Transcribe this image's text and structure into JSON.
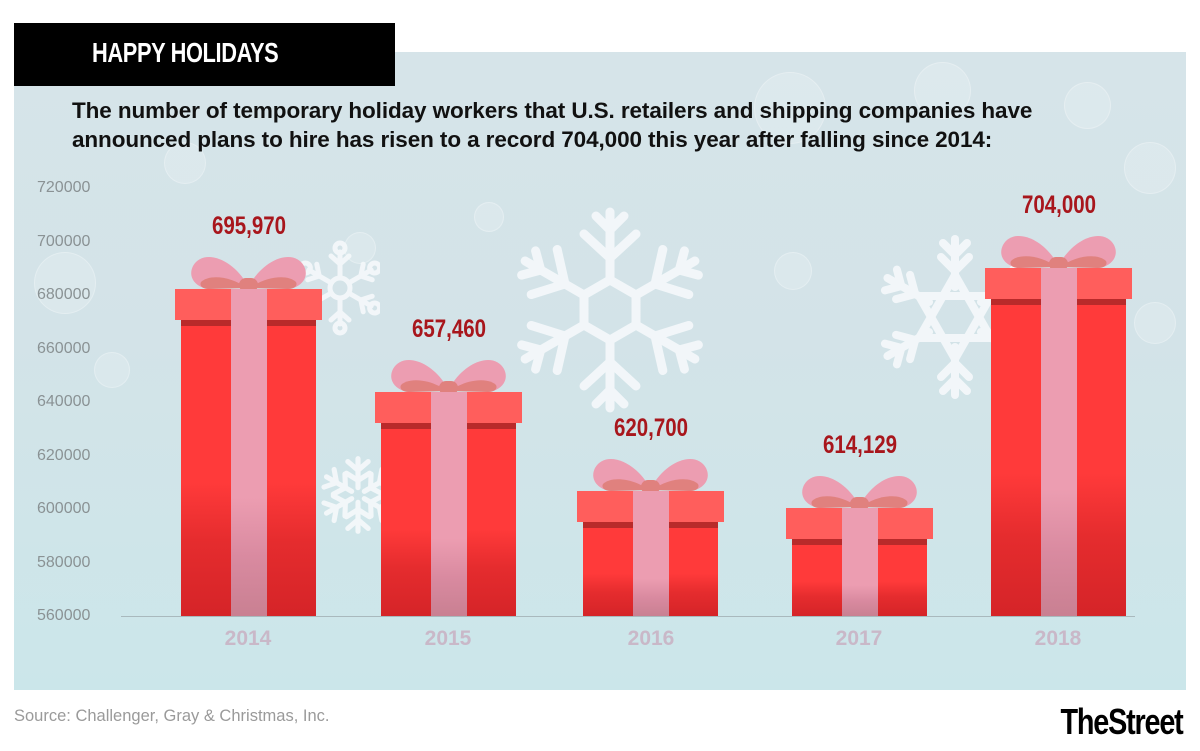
{
  "header": {
    "title": "HAPPY HOLIDAYS",
    "subtitle_line1": "The number of temporary holiday workers that U.S. retailers and shipping companies have",
    "subtitle_line2": "announced plans to hire has risen to a record 704,000 this year after falling since 2014:"
  },
  "footer": {
    "source": "Source: Challenger, Gray & Christmas, Inc.",
    "logo": "TheStreet"
  },
  "colors": {
    "title_bg": "#000000",
    "gift_lid": "#ff5e5c",
    "gift_body": "#ff3a3a",
    "gift_band": "#b92a2a",
    "ribbon": "#ec9db1",
    "bow_inner": "#e0817e",
    "value_label": "#a8161c",
    "x_label": "#c9b8c8",
    "y_label": "#8a9294",
    "panel_bg": "#d3e3e8"
  },
  "chart_data": {
    "type": "bar",
    "title": "HAPPY HOLIDAYS",
    "subtitle": "The number of temporary holiday workers that U.S. retailers and shipping companies have announced plans to hire has risen to a record 704,000 this year after falling since 2014:",
    "xlabel": "",
    "ylabel": "",
    "categories": [
      "2014",
      "2015",
      "2016",
      "2017",
      "2018"
    ],
    "values": [
      695970,
      657460,
      620700,
      614129,
      704000
    ],
    "value_labels": [
      "695,970",
      "657,460",
      "620,700",
      "614,129",
      "704,000"
    ],
    "ylim": [
      560000,
      720000
    ],
    "yticks": [
      "720000",
      "700000",
      "680000",
      "660000",
      "640000",
      "620000",
      "600000",
      "580000",
      "560000"
    ],
    "grid": false,
    "legend": null,
    "bar_style": "gift boxes with bows",
    "source": "Source: Challenger, Gray & Christmas, Inc."
  }
}
